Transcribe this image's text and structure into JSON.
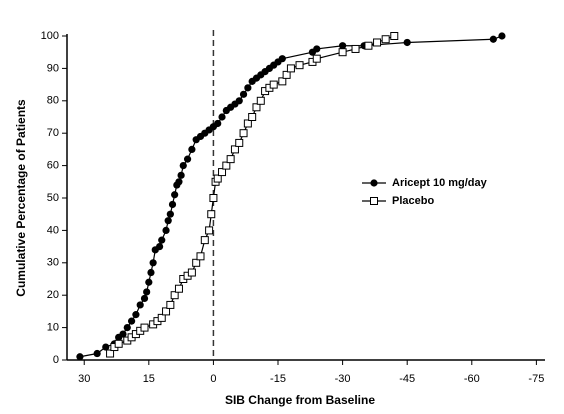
{
  "chart_data": {
    "type": "line",
    "xlabel": "SIB Change from Baseline",
    "ylabel": "Cumulative Percentage of Patients",
    "xlim": [
      34,
      -77
    ],
    "xticks": [
      30,
      15,
      0,
      -15,
      -30,
      -45,
      -60,
      -75
    ],
    "ylim": [
      0,
      100
    ],
    "yticks": [
      0,
      10,
      20,
      30,
      40,
      50,
      60,
      70,
      80,
      90,
      100
    ],
    "vline": 0,
    "legend": "right",
    "series": [
      {
        "name": "Aricept 10 mg/day",
        "color": "#000000",
        "marker": "filled-circle",
        "x": [
          31,
          27,
          25,
          23,
          22,
          21,
          20,
          19,
          18,
          17,
          16,
          15.5,
          15,
          14.5,
          14,
          13.5,
          12.5,
          12,
          11,
          10.5,
          10,
          9.5,
          9,
          8.5,
          8,
          7.5,
          7,
          6,
          5,
          4,
          3,
          2,
          1,
          0,
          -1,
          -2,
          -3,
          -4,
          -5,
          -6,
          -7,
          -8,
          -9,
          -10,
          -11,
          -12,
          -13,
          -14,
          -15,
          -16,
          -23,
          -24,
          -30,
          -35,
          -45,
          -65,
          -67
        ],
        "values": [
          1,
          2,
          4,
          5,
          7,
          8,
          10,
          12,
          14,
          17,
          19,
          21,
          24,
          27,
          30,
          34,
          35,
          37,
          40,
          43,
          45,
          48,
          51,
          54,
          55,
          57,
          60,
          62,
          65,
          68,
          69,
          70,
          71,
          72,
          73,
          75,
          77,
          78,
          79,
          80,
          82,
          84,
          86,
          87,
          88,
          89,
          90,
          91,
          92,
          93,
          95,
          96,
          97,
          97,
          98,
          99,
          100
        ]
      },
      {
        "name": "Placebo",
        "color": "#000000",
        "marker": "open-square",
        "x": [
          24,
          23,
          22,
          20,
          19,
          18,
          17,
          16,
          14,
          13,
          12,
          11,
          10,
          9,
          8,
          7,
          6,
          5,
          4,
          3,
          2,
          1,
          0.5,
          0,
          -0.5,
          -1,
          -2,
          -3,
          -4,
          -5,
          -6,
          -7,
          -8,
          -9,
          -10,
          -11,
          -12,
          -13,
          -14,
          -16,
          -17,
          -18,
          -20,
          -23,
          -24,
          -30,
          -33,
          -36,
          -38,
          -40,
          -42
        ],
        "values": [
          2,
          4,
          5,
          6,
          7,
          8,
          9,
          10,
          11,
          12,
          13,
          15,
          17,
          20,
          22,
          25,
          26,
          27,
          30,
          32,
          37,
          40,
          45,
          50,
          55,
          56,
          58,
          60,
          62,
          65,
          67,
          70,
          73,
          75,
          78,
          80,
          83,
          84,
          85,
          86,
          88,
          90,
          91,
          92,
          93,
          95,
          96,
          97,
          98,
          99,
          100
        ]
      }
    ]
  }
}
